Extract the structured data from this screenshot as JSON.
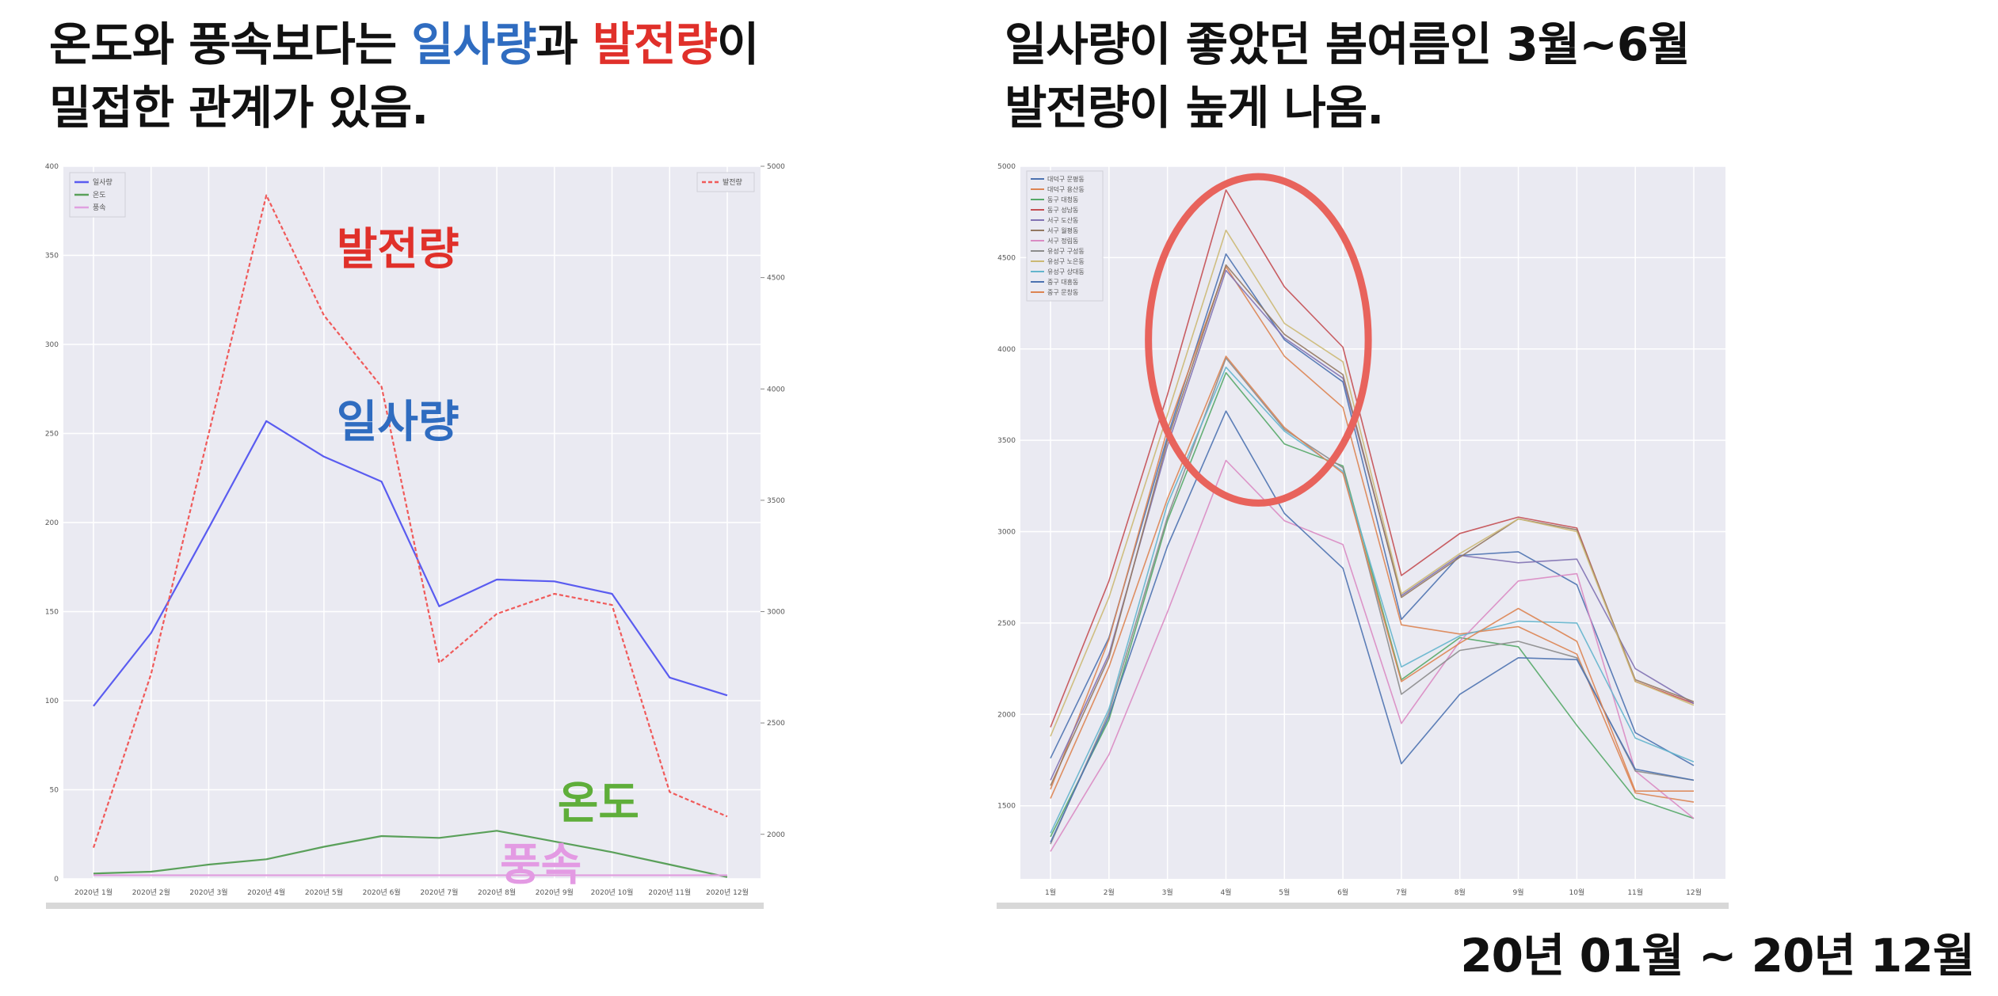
{
  "headline_left": {
    "prefix": "온도와 풍속보다는 ",
    "solar": "일사량",
    "mid": "과 ",
    "power": "발전량",
    "suffix": "이",
    "line2": "밀접한 관계가 있음."
  },
  "headline_right": {
    "line1": "일사량이 좋았던 봄여름인 3월~6월",
    "line2": "발전량이 높게 나옴."
  },
  "period_label": "20년 01월 ~ 20년 12월",
  "colors": {
    "solar": "#5a5cf0",
    "power": "#f05a5a",
    "temp": "#5aa05a",
    "wind": "#e0a0e0",
    "highlight": "#e8635c",
    "plot_bg": "#eaeaf2",
    "solar_text": "#2f6cc0",
    "power_text": "#e0302a",
    "temp_text": "#5fae3a",
    "wind_text": "#e39ae3"
  },
  "chart_data": [
    {
      "type": "line",
      "categories": [
        "2020년 1월",
        "2020년 2월",
        "2020년 3월",
        "2020년 4월",
        "2020년 5월",
        "2020년 6월",
        "2020년 7월",
        "2020년 8월",
        "2020년 9월",
        "2020년 10월",
        "2020년 11월",
        "2020년 12월"
      ],
      "left_axis": {
        "ylim": [
          0,
          400
        ],
        "ticks": [
          0,
          50,
          100,
          150,
          200,
          250,
          300,
          350,
          400
        ]
      },
      "right_axis": {
        "ylim": [
          1800,
          5000
        ],
        "ticks": [
          2000,
          2500,
          3000,
          3500,
          4000,
          4500,
          5000
        ]
      },
      "series": [
        {
          "name": "일사량",
          "axis": "left",
          "style": "solid",
          "color": "#5a5cf0",
          "values": [
            97,
            138,
            197,
            257,
            237,
            223,
            153,
            168,
            167,
            160,
            113,
            103
          ]
        },
        {
          "name": "온도",
          "axis": "left",
          "style": "solid",
          "color": "#5aa05a",
          "values": [
            3,
            4,
            8,
            11,
            18,
            24,
            23,
            27,
            21,
            15,
            8,
            1
          ]
        },
        {
          "name": "풍속",
          "axis": "left",
          "style": "solid",
          "color": "#e0a0e0",
          "values": [
            2,
            2,
            2,
            2,
            2,
            2,
            2,
            2,
            2,
            2,
            2,
            2
          ]
        },
        {
          "name": "발전량",
          "axis": "right",
          "style": "dashed",
          "color": "#f05a5a",
          "values": [
            1940,
            2720,
            3800,
            4870,
            4330,
            4010,
            2770,
            2990,
            3080,
            3030,
            2190,
            2080
          ]
        }
      ],
      "annotations": [
        {
          "text": "발전량",
          "color": "#e0302a"
        },
        {
          "text": "일사량",
          "color": "#2f6cc0"
        },
        {
          "text": "온도",
          "color": "#5fae3a"
        },
        {
          "text": "풍속",
          "color": "#e39ae3"
        }
      ],
      "legend_left": "top-left",
      "legend_right": "top-right",
      "grid": true
    },
    {
      "type": "line",
      "categories": [
        "1월",
        "2월",
        "3월",
        "4월",
        "5월",
        "6월",
        "7월",
        "8월",
        "9월",
        "10월",
        "11월",
        "12월"
      ],
      "ylim": [
        1100,
        5000
      ],
      "yticks": [
        1500,
        2000,
        2500,
        3000,
        3500,
        4000,
        4500,
        5000
      ],
      "series": [
        {
          "name": "대덕구 문평동",
          "color": "#4c72b0",
          "values": [
            1760,
            2420,
            3520,
            4520,
            4050,
            3820,
            2520,
            2870,
            2890,
            2710,
            1900,
            1720
          ]
        },
        {
          "name": "대덕구 용산동",
          "color": "#dd8452",
          "values": [
            1590,
            2410,
            3560,
            4450,
            3960,
            3680,
            2490,
            2440,
            2480,
            2330,
            1570,
            1520
          ]
        },
        {
          "name": "동구 대청동",
          "color": "#55a868",
          "values": [
            1330,
            1970,
            3060,
            3870,
            3480,
            3360,
            2190,
            2420,
            2370,
            1940,
            1540,
            1430
          ]
        },
        {
          "name": "동구 성남동",
          "color": "#c44e52",
          "values": [
            1930,
            2730,
            3750,
            4870,
            4340,
            4010,
            2760,
            2990,
            3080,
            3020,
            2180,
            2060
          ]
        },
        {
          "name": "서구 도산동",
          "color": "#8172b3",
          "values": [
            1640,
            2330,
            3470,
            4430,
            4060,
            3840,
            2650,
            2870,
            2830,
            2850,
            2250,
            2060
          ]
        },
        {
          "name": "서구 월평동",
          "color": "#937860",
          "values": [
            1610,
            2310,
            3500,
            4460,
            4080,
            3860,
            2640,
            2860,
            3070,
            3010,
            2190,
            2070
          ]
        },
        {
          "name": "서구 정림동",
          "color": "#da8bc3",
          "values": [
            1250,
            1780,
            2560,
            3390,
            3060,
            2930,
            1950,
            2400,
            2730,
            2770,
            1690,
            1430
          ]
        },
        {
          "name": "유성구 구성동",
          "color": "#8c8c8c",
          "values": [
            1290,
            2010,
            3080,
            3950,
            3560,
            3350,
            2110,
            2350,
            2400,
            2310,
            1690,
            1640
          ]
        },
        {
          "name": "유성구 노은동",
          "color": "#ccb974",
          "values": [
            1880,
            2640,
            3640,
            4650,
            4140,
            3930,
            2660,
            2880,
            3070,
            3000,
            2180,
            2050
          ]
        },
        {
          "name": "유성구 상대동",
          "color": "#64b5cd",
          "values": [
            1350,
            2030,
            3150,
            3900,
            3550,
            3330,
            2260,
            2430,
            2510,
            2500,
            1870,
            1740
          ]
        },
        {
          "name": "중구 대흥동",
          "color": "#4c72b0",
          "values": [
            1300,
            1990,
            2920,
            3660,
            3100,
            2800,
            1730,
            2110,
            2310,
            2300,
            1700,
            1640
          ]
        },
        {
          "name": "중구 문창동",
          "color": "#dd8452",
          "values": [
            1540,
            2260,
            3180,
            3960,
            3570,
            3320,
            2180,
            2390,
            2580,
            2400,
            1580,
            1580
          ]
        }
      ],
      "legend": "top-left",
      "grid": true,
      "highlight_label": "3월~6월"
    }
  ]
}
